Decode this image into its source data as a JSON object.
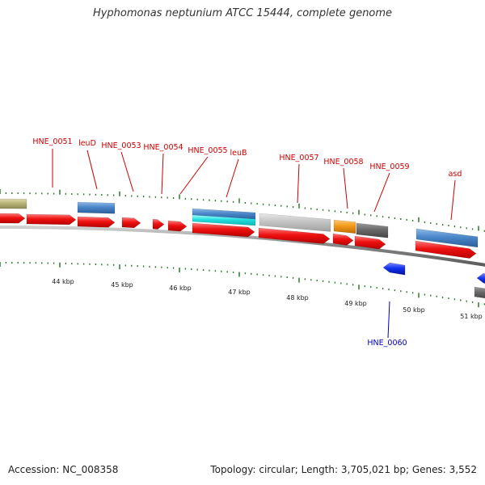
{
  "title": "Hyphomonas neptunium ATCC 15444, complete genome",
  "footer": {
    "accession": "Accession: NC_008358",
    "summary": "Topology: circular; Length: 3,705,021 bp; Genes: 3,552"
  },
  "colors": {
    "cds": "#ee1111",
    "reverse_cds": "#1133ee",
    "label_forward": "#cc0000",
    "label_reverse": "#0000bb",
    "backbone": "#888888",
    "tick": "#2a7a2a",
    "olive": "#b8b478",
    "steelblue": "#4a86c8",
    "cyan": "#22dddd",
    "lightgray": "#c4c4c4",
    "orange": "#f39a1a",
    "darkgray": "#6a6a6a"
  },
  "scale_labels": [
    "44 kbp",
    "45 kbp",
    "46 kbp",
    "47 kbp",
    "48 kbp",
    "49 kbp",
    "50 kbp",
    "51 kbp"
  ],
  "genes": [
    {
      "label": "HNE_0051"
    },
    {
      "label": "leuD"
    },
    {
      "label": "HNE_0053"
    },
    {
      "label": "HNE_0054"
    },
    {
      "label": "HNE_0055"
    },
    {
      "label": "leuB"
    },
    {
      "label": "HNE_0057"
    },
    {
      "label": "HNE_0058"
    },
    {
      "label": "HNE_0059"
    },
    {
      "label": "asd"
    },
    {
      "label": "HNE_0060"
    }
  ]
}
